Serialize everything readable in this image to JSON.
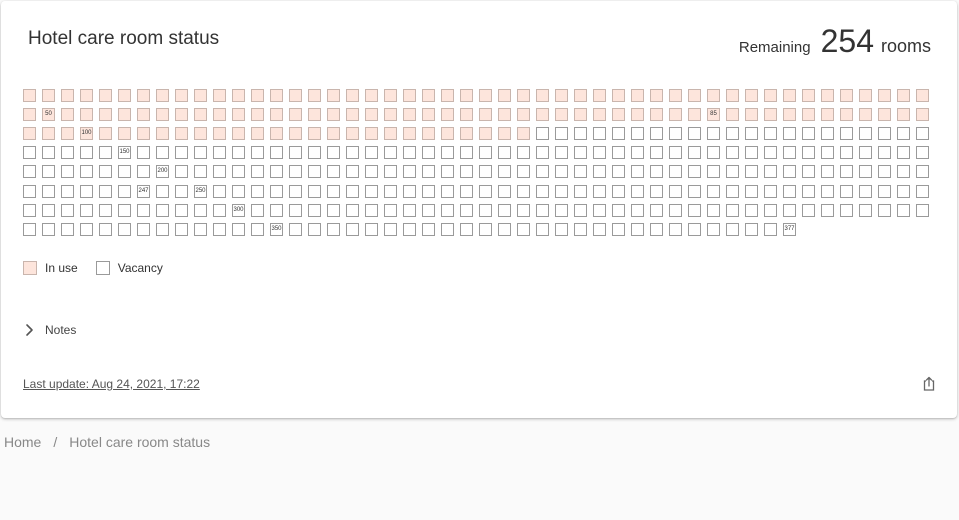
{
  "card": {
    "title": "Hotel care room status",
    "remaining_prefix": "Remaining",
    "remaining_count": "254",
    "remaining_suffix": "rooms"
  },
  "rooms": {
    "total": 377,
    "in_use": 123,
    "per_row": 48,
    "labels": {
      "50": "50",
      "85": "85",
      "100": "100",
      "150": "150",
      "200": "200",
      "247": "247",
      "250": "250",
      "300": "300",
      "350": "350",
      "377": "377"
    },
    "colors": {
      "in_use": "#fde5dc",
      "vacancy": "#ffffff"
    }
  },
  "legend": {
    "in_use": "In use",
    "vacancy": "Vacancy"
  },
  "notes": {
    "label": "Notes"
  },
  "footer": {
    "last_update": "Last update: Aug 24, 2021, 17:22"
  },
  "breadcrumb": {
    "home": "Home",
    "separator": "/",
    "current": "Hotel care room status"
  }
}
